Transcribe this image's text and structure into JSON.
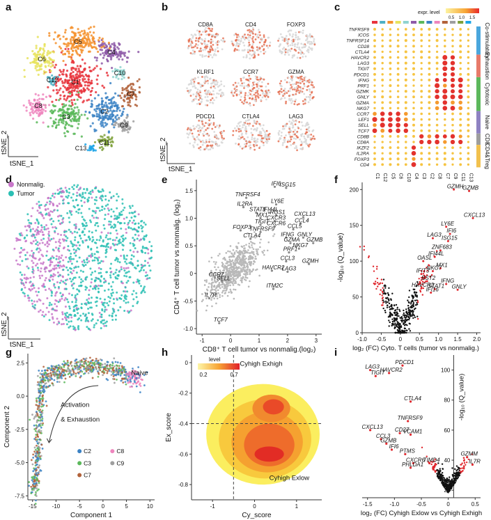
{
  "figure": {
    "panel_labels": [
      "a",
      "b",
      "c",
      "d",
      "e",
      "f",
      "g",
      "h",
      "i"
    ]
  },
  "panel_a": {
    "x_label": "tSNE_1",
    "y_label": "tSNE_2",
    "clusters": [
      {
        "name": "C1",
        "color": "#e8343c"
      },
      {
        "name": "C2",
        "color": "#3b82c4"
      },
      {
        "name": "C3",
        "color": "#5bb85b"
      },
      {
        "name": "C4",
        "color": "#8e5aa8"
      },
      {
        "name": "C5",
        "color": "#f4902c"
      },
      {
        "name": "C6",
        "color": "#e7e35e"
      },
      {
        "name": "C7",
        "color": "#b2623a"
      },
      {
        "name": "C8",
        "color": "#ee86be"
      },
      {
        "name": "C9",
        "color": "#9e9e9e"
      },
      {
        "name": "C10",
        "color": "#8fd3cf"
      },
      {
        "name": "C11",
        "color": "#7ea03a"
      },
      {
        "name": "C12",
        "color": "#4fb0c4"
      },
      {
        "name": "C13",
        "color": "#1ea5e6"
      }
    ]
  },
  "panel_b": {
    "genes": [
      "CD8A",
      "CD4",
      "FOXP3",
      "KLRF1",
      "CCR7",
      "GZMA",
      "PDCD1",
      "CTLA4",
      "LAG3"
    ],
    "intensity": [
      0.55,
      0.45,
      0.15,
      0.25,
      0.6,
      0.55,
      0.45,
      0.3,
      0.35
    ],
    "x_label": "tSNE_1",
    "y_label": "tSNE_2"
  },
  "panel_c": {
    "legend_title": "expr. level",
    "legend_ticks": [
      "0.5",
      "1.0",
      "1.5"
    ],
    "genes": [
      "TNFRSF9",
      "ICOS",
      "TNFRSF14",
      "CD28",
      "CTLA4",
      "HAVCR2",
      "LAG3",
      "TIGIT",
      "PDCD1",
      "IFNG",
      "PRF1",
      "GZMK",
      "GNLY",
      "GZMA",
      "NKG7",
      "CCR7",
      "LEF1",
      "SELL",
      "TCF7",
      "CD8B",
      "CD8A",
      "IKZF2",
      "IL2RA",
      "FOXP3",
      "CD4"
    ],
    "clusters": [
      "C1",
      "C12",
      "C5",
      "C6",
      "C10",
      "C4",
      "C3",
      "C2",
      "C8",
      "C7",
      "C9",
      "C11",
      "C13"
    ],
    "groups": [
      {
        "name": "Co-stimulatory",
        "color": "#4aa6dd"
      },
      {
        "name": "Exhaustion",
        "color": "#e77a6a"
      },
      {
        "name": "Cytotoxic",
        "color": "#5cb85c"
      },
      {
        "name": "Naive",
        "color": "#8e82c2"
      },
      {
        "name": "CD8",
        "color": "#9e9e9e"
      },
      {
        "name": "CD4&Treg",
        "color": "#f2c14e"
      }
    ]
  },
  "panel_d": {
    "legend": [
      {
        "name": "Nonmalig.",
        "color": "#c877c9"
      },
      {
        "name": "Tumor",
        "color": "#2bbfb4"
      }
    ],
    "x_label": "tSNE_1",
    "y_label": "tSNE_2"
  },
  "panel_e": {
    "x_label": "CD8⁺ T cell tumor vs nonmalig.(log₂)",
    "y_label": "CD4⁺ T cell tumor vs nonmalig. (log₂)",
    "x_ticks": [
      "-1",
      "0",
      "1",
      "2",
      "3"
    ],
    "y_ticks": [
      "-1.0",
      "-0.5",
      "0",
      "0.5",
      "1.0",
      "1.5"
    ],
    "genes": [
      {
        "name": "IFI6",
        "x": 1.55,
        "y": 1.57
      },
      {
        "name": "ISG15",
        "x": 1.95,
        "y": 1.55
      },
      {
        "name": "TNFRSF4",
        "x": 0.55,
        "y": 1.37
      },
      {
        "name": "IL2RA",
        "x": 0.45,
        "y": 1.2
      },
      {
        "name": "LY6E",
        "x": 1.6,
        "y": 1.25
      },
      {
        "name": "STAT1",
        "x": 0.9,
        "y": 1.1
      },
      {
        "name": "IFI44L",
        "x": 1.35,
        "y": 1.1
      },
      {
        "name": "RGS1",
        "x": 1.6,
        "y": 1.05
      },
      {
        "name": "MX1",
        "x": 1.05,
        "y": 1.0
      },
      {
        "name": "CXCR3",
        "x": 1.55,
        "y": 0.95
      },
      {
        "name": "CXCL13",
        "x": 2.55,
        "y": 1.02
      },
      {
        "name": "TIGIT",
        "x": 1.05,
        "y": 0.88
      },
      {
        "name": "CXCR6",
        "x": 1.55,
        "y": 0.85
      },
      {
        "name": "CCL4",
        "x": 2.45,
        "y": 0.9
      },
      {
        "name": "FOXP3",
        "x": 0.35,
        "y": 0.78
      },
      {
        "name": "TNFRSF9",
        "x": 1.05,
        "y": 0.75
      },
      {
        "name": "CCL5",
        "x": 2.2,
        "y": 0.8
      },
      {
        "name": "CTLA4",
        "x": 0.7,
        "y": 0.63
      },
      {
        "name": "IFNG",
        "x": 1.95,
        "y": 0.65
      },
      {
        "name": "GNLY",
        "x": 2.55,
        "y": 0.65
      },
      {
        "name": "GZMA",
        "x": 2.1,
        "y": 0.55
      },
      {
        "name": "GZMB",
        "x": 2.9,
        "y": 0.55
      },
      {
        "name": "NKG7",
        "x": 2.4,
        "y": 0.45
      },
      {
        "name": "PRF1",
        "x": 2.05,
        "y": 0.38
      },
      {
        "name": "CCL3",
        "x": 1.95,
        "y": 0.22
      },
      {
        "name": "GZMH",
        "x": 2.75,
        "y": 0.17
      },
      {
        "name": "HAVCR2",
        "x": 1.45,
        "y": 0.05
      },
      {
        "name": "LAG3",
        "x": 2.0,
        "y": 0.03
      },
      {
        "name": "CCR7",
        "x": -0.55,
        "y": -0.08
      },
      {
        "name": "SELL",
        "x": -0.3,
        "y": -0.15
      },
      {
        "name": "IL7R",
        "x": -0.75,
        "y": -0.45
      },
      {
        "name": "ITM2C",
        "x": 1.5,
        "y": -0.28
      },
      {
        "name": "TCF7",
        "x": -0.4,
        "y": -0.9
      }
    ]
  },
  "panel_f": {
    "x_label": "log₂ (FC) Cyto. T cells (tumor vs nonmalig.)",
    "y_label": "-log₁₀ (Q_value)",
    "x_ticks": [
      "-1.0",
      "-0.5",
      "0",
      "0.5",
      "1.0",
      "1.5",
      "2.0"
    ],
    "y_ticks": [
      "0",
      "50",
      "100",
      "150",
      "200"
    ],
    "genes": [
      {
        "name": "GZMH",
        "x": 1.4,
        "y": 200
      },
      {
        "name": "GZMB",
        "x": 1.8,
        "y": 198
      },
      {
        "name": "CXCL13",
        "x": 1.9,
        "y": 160
      },
      {
        "name": "LY6E",
        "x": 1.2,
        "y": 148
      },
      {
        "name": "IFI6",
        "x": 1.3,
        "y": 138
      },
      {
        "name": "LAG3",
        "x": 0.85,
        "y": 132
      },
      {
        "name": "ISG15",
        "x": 1.25,
        "y": 128
      },
      {
        "name": "ZNF683",
        "x": 1.05,
        "y": 115
      },
      {
        "name": "IFI44L",
        "x": 0.9,
        "y": 106
      },
      {
        "name": "OASL",
        "x": 0.6,
        "y": 100
      },
      {
        "name": "MX1",
        "x": 1.05,
        "y": 90
      },
      {
        "name": "NKG7",
        "x": 0.85,
        "y": 86
      },
      {
        "name": "IFIT3",
        "x": 0.55,
        "y": 82
      },
      {
        "name": "BST2",
        "x": 0.7,
        "y": 72
      },
      {
        "name": "IFNG",
        "x": 1.2,
        "y": 68
      },
      {
        "name": "HAVCR2",
        "x": 0.55,
        "y": 62
      },
      {
        "name": "STAT1",
        "x": 0.9,
        "y": 61
      },
      {
        "name": "GNLY",
        "x": 1.5,
        "y": 60
      },
      {
        "name": "IFI16",
        "x": 0.8,
        "y": 56
      }
    ]
  },
  "panel_g": {
    "x_label": "Component 1",
    "y_label": "Component 2",
    "x_ticks": [
      "-15",
      "-10",
      "-5",
      "0",
      "5",
      "10"
    ],
    "y_ticks": [
      "-7.5",
      "-5.0",
      "-2.5",
      "0.0",
      "2.5"
    ],
    "annotation_naive": "Naive",
    "annotation_path": "Activation\n& Exhaustion",
    "annotation_path_line1": "Activation",
    "annotation_path_line2": "& Exhaustion",
    "legend": [
      {
        "name": "C2",
        "color": "#3b82c4"
      },
      {
        "name": "C8",
        "color": "#ee86be"
      },
      {
        "name": "C3",
        "color": "#5bb85b"
      },
      {
        "name": "C9",
        "color": "#9e9e9e"
      },
      {
        "name": "C7",
        "color": "#b2623a"
      }
    ]
  },
  "panel_h": {
    "legend_title": "level",
    "legend_ticks": [
      "0.2",
      "0.7"
    ],
    "x_label": "Cy_score",
    "y_label": "Ex_score",
    "x_ticks": [
      "-1",
      "0",
      "1"
    ],
    "y_ticks": [
      "-0.8",
      "-0.6",
      "-0.4",
      "-0.2",
      "0"
    ],
    "label_hi": "Cyhigh Exhigh",
    "label_lo": "Cyhigh Exlow"
  },
  "panel_i": {
    "x_label": "log₂ (FC) Cyhigh Exlow vs Cyhigh Exhigh",
    "y_label": "-log₁₀ (Q_value)",
    "x_ticks": [
      "-1.5",
      "-1.0",
      "-0.5",
      "0",
      "0.5"
    ],
    "y_ticks": [
      "20",
      "40",
      "60",
      "80",
      "100"
    ],
    "genes": [
      {
        "name": "LAG3",
        "x": -1.45,
        "y": 100
      },
      {
        "name": "PDCD1",
        "x": -0.85,
        "y": 103
      },
      {
        "name": "HAVCR2",
        "x": -1.1,
        "y": 98
      },
      {
        "name": "TIGIT",
        "x": -1.35,
        "y": 96
      },
      {
        "name": "CTLA4",
        "x": -0.7,
        "y": 79
      },
      {
        "name": "TNFRSF9",
        "x": -0.75,
        "y": 66
      },
      {
        "name": "CXCL13",
        "x": -1.45,
        "y": 60
      },
      {
        "name": "CD27",
        "x": -0.9,
        "y": 58
      },
      {
        "name": "VCAM1",
        "x": -0.7,
        "y": 57
      },
      {
        "name": "CCL3",
        "x": -1.25,
        "y": 54
      },
      {
        "name": "GZMB",
        "x": -1.15,
        "y": 51
      },
      {
        "name": "IFI6",
        "x": -1.05,
        "y": 47
      },
      {
        "name": "PTMS",
        "x": -0.8,
        "y": 44
      },
      {
        "name": "CXCR6",
        "x": -0.65,
        "y": 38
      },
      {
        "name": "TIMD4",
        "x": -0.35,
        "y": 38
      },
      {
        "name": "PHLDA1",
        "x": -0.7,
        "y": 35
      },
      {
        "name": "GZMM",
        "x": 0.35,
        "y": 42
      },
      {
        "name": "IL7R",
        "x": 0.45,
        "y": 37
      }
    ]
  },
  "chart_data": [
    {
      "type": "scatter",
      "panel": "a",
      "title": "",
      "xlabel": "tSNE_1",
      "ylabel": "tSNE_2",
      "series": [
        {
          "name": "C1"
        },
        {
          "name": "C2"
        },
        {
          "name": "C3"
        },
        {
          "name": "C4"
        },
        {
          "name": "C5"
        },
        {
          "name": "C6"
        },
        {
          "name": "C7"
        },
        {
          "name": "C8"
        },
        {
          "name": "C9"
        },
        {
          "name": "C10"
        },
        {
          "name": "C11"
        },
        {
          "name": "C12"
        },
        {
          "name": "C13"
        }
      ]
    },
    {
      "type": "heatmap",
      "panel": "c",
      "title": "",
      "xlabel": "",
      "ylabel": ""
    },
    {
      "type": "scatter",
      "panel": "e",
      "xlabel": "CD8⁺ T cell tumor vs nonmalig.(log₂)",
      "ylabel": "CD4⁺ T cell tumor vs nonmalig. (log₂)",
      "xlim": [
        -1.2,
        3.2
      ],
      "ylim": [
        -1.1,
        1.7
      ]
    },
    {
      "type": "scatter",
      "panel": "f",
      "xlabel": "log₂ (FC) Cyto. T cells (tumor vs nonmalig.)",
      "ylabel": "-log₁₀ (Q_value)",
      "xlim": [
        -1.0,
        2.1
      ],
      "ylim": [
        0,
        210
      ]
    },
    {
      "type": "scatter",
      "panel": "g",
      "xlabel": "Component 1",
      "ylabel": "Component 2",
      "xlim": [
        -16,
        11
      ],
      "ylim": [
        -7.8,
        3.2
      ]
    },
    {
      "type": "heatmap",
      "panel": "h",
      "xlabel": "Cy_score",
      "ylabel": "Ex_score",
      "xlim": [
        -1.5,
        1.6
      ],
      "ylim": [
        -0.9,
        0.05
      ]
    },
    {
      "type": "scatter",
      "panel": "i",
      "xlabel": "log₂ (FC) Cyhigh Exlow vs Cyhigh Exhigh",
      "ylabel": "-log₁₀ (Q_value)",
      "xlim": [
        -1.6,
        0.6
      ],
      "ylim": [
        15,
        110
      ]
    }
  ]
}
